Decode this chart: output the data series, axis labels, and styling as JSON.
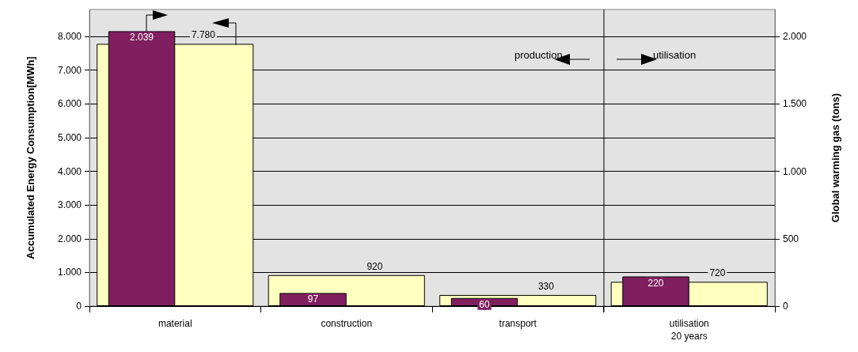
{
  "chart_data": {
    "type": "bar",
    "categories": [
      "material",
      "construction",
      "transport",
      "utilisation\n20 years"
    ],
    "ylabel": "Accumulated Energy Consumption[MWh]",
    "y2label": "Global warming gas (tons)",
    "series": [
      {
        "color": "#ffffc0",
        "values": [
          7780,
          920,
          330,
          720
        ],
        "value_labels": [
          "7.780",
          "920",
          "330",
          "720"
        ]
      },
      {
        "color": "#7f1f5f",
        "values": [
          2039,
          97,
          60,
          220
        ],
        "axis": "y2",
        "value_labels": [
          "2.039",
          "97",
          "60",
          "220"
        ]
      }
    ],
    "ylim": [
      0,
      8800
    ],
    "yticks": [
      {
        "value": 0,
        "label": "0"
      },
      {
        "value": 1000,
        "label": "1.000"
      },
      {
        "value": 2000,
        "label": "2.000"
      },
      {
        "value": 3000,
        "label": "3.000"
      },
      {
        "value": 4000,
        "label": "4.000"
      },
      {
        "value": 5000,
        "label": "5.000"
      },
      {
        "value": 6000,
        "label": "6.000"
      },
      {
        "value": 7000,
        "label": "7.000"
      },
      {
        "value": 8000,
        "label": "8.000"
      }
    ],
    "y2lim": [
      0,
      2200
    ],
    "y2ticks": [
      0,
      500,
      {
        "value": 1000,
        "label": "1.000"
      },
      {
        "value": 1500,
        "label": "1.500"
      },
      {
        "value": 2000,
        "label": "2.000"
      }
    ],
    "annotations": [
      "production",
      "utilisation"
    ],
    "grid": "y"
  }
}
